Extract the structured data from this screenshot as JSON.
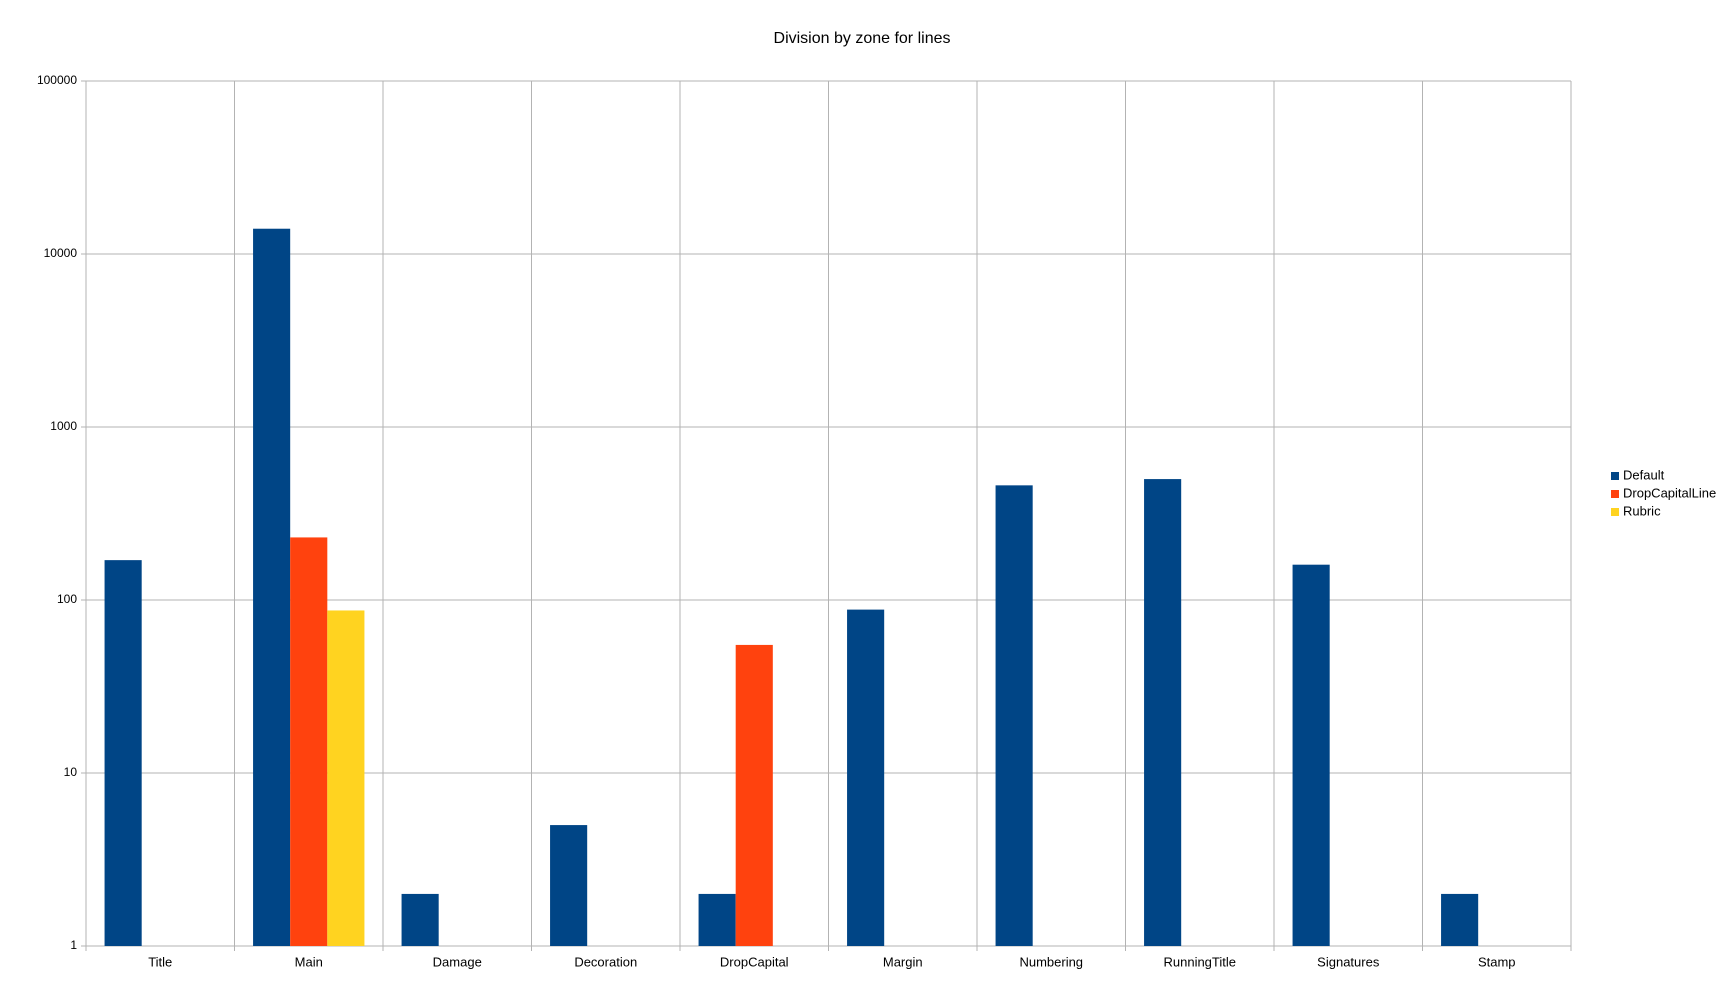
{
  "chart_data": {
    "type": "bar",
    "title": "Division by zone for lines",
    "categories": [
      "Title",
      "Main",
      "Damage",
      "Decoration",
      "DropCapital",
      "Margin",
      "Numbering",
      "RunningTitle",
      "Signatures",
      "Stamp"
    ],
    "series": [
      {
        "name": "Default",
        "color": "#004586",
        "values": [
          170,
          14000,
          2,
          5,
          2,
          88,
          460,
          500,
          160,
          2
        ]
      },
      {
        "name": "DropCapitalLine",
        "color": "#ff420e",
        "values": [
          null,
          230,
          null,
          null,
          55,
          null,
          null,
          null,
          null,
          null
        ]
      },
      {
        "name": "Rubric",
        "color": "#ffd320",
        "values": [
          null,
          87,
          null,
          null,
          null,
          null,
          null,
          null,
          null,
          null
        ]
      }
    ],
    "ylim": [
      1,
      100000
    ],
    "yticks": [
      1,
      10,
      100,
      1000,
      10000,
      100000
    ],
    "log_scale": true,
    "grid": true,
    "legend": "right"
  }
}
